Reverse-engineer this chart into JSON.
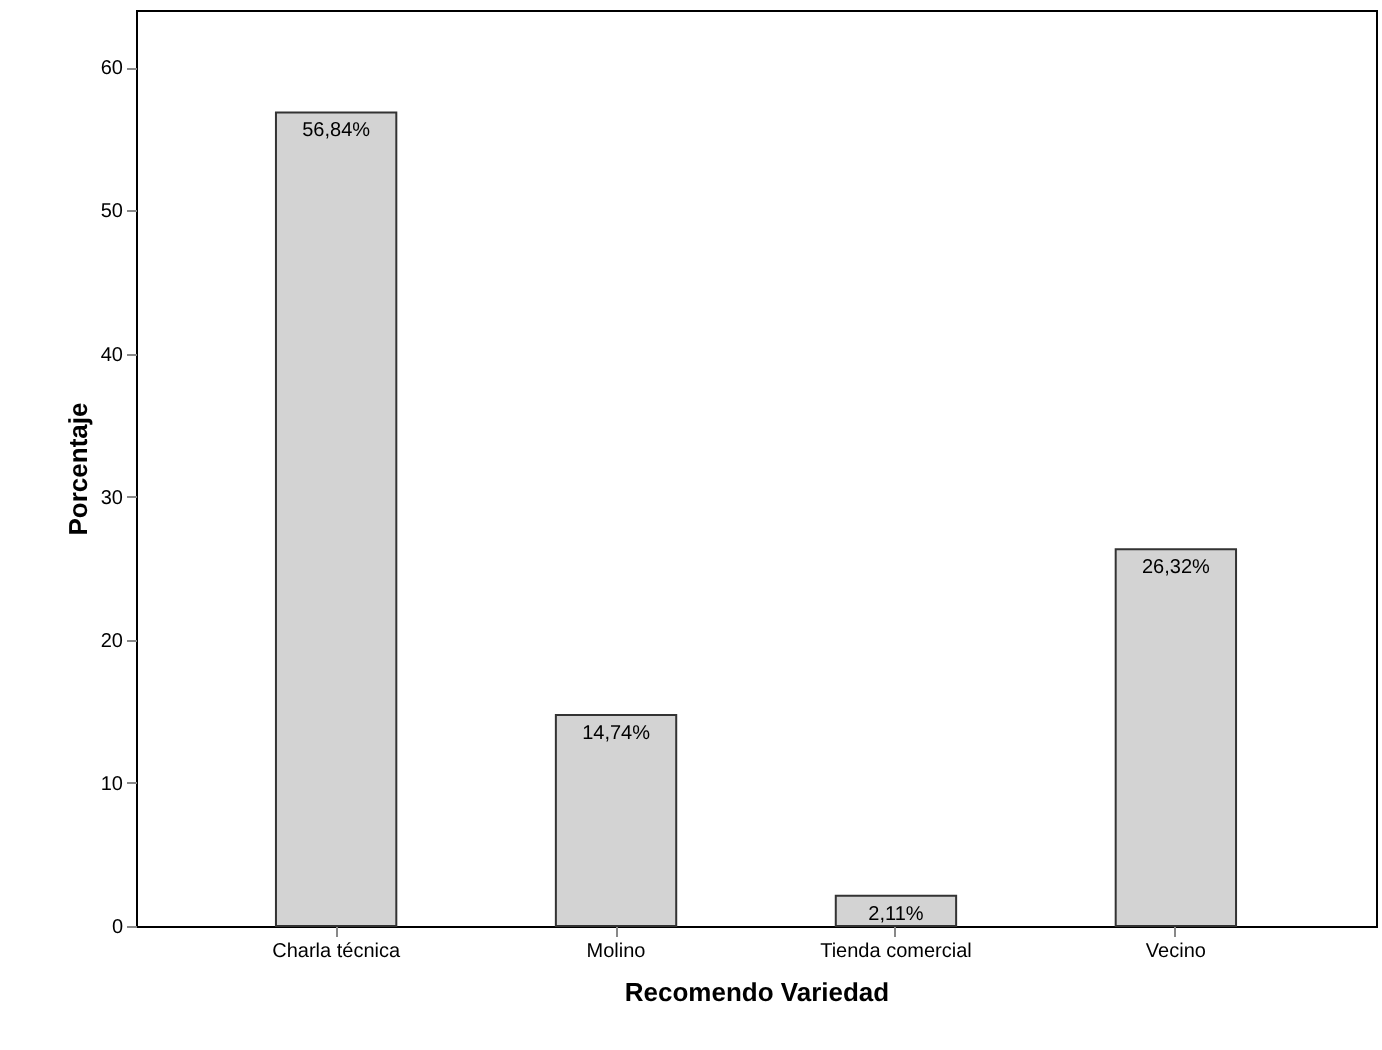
{
  "chart_data": {
    "type": "bar",
    "xlabel": "Recomendo Variedad",
    "ylabel": "Porcentaje",
    "categories": [
      "Charla técnica",
      "Molino",
      "Tienda comercial",
      "Vecino"
    ],
    "values": [
      56.84,
      14.74,
      2.11,
      26.32
    ],
    "value_labels": [
      "56,84%",
      "14,74%",
      "2,11%",
      "26,32%"
    ],
    "color": "#d3d3d3",
    "ylim": [
      0,
      64
    ],
    "yticks": [
      0,
      10,
      20,
      30,
      40,
      50,
      60
    ],
    "grid": false
  }
}
